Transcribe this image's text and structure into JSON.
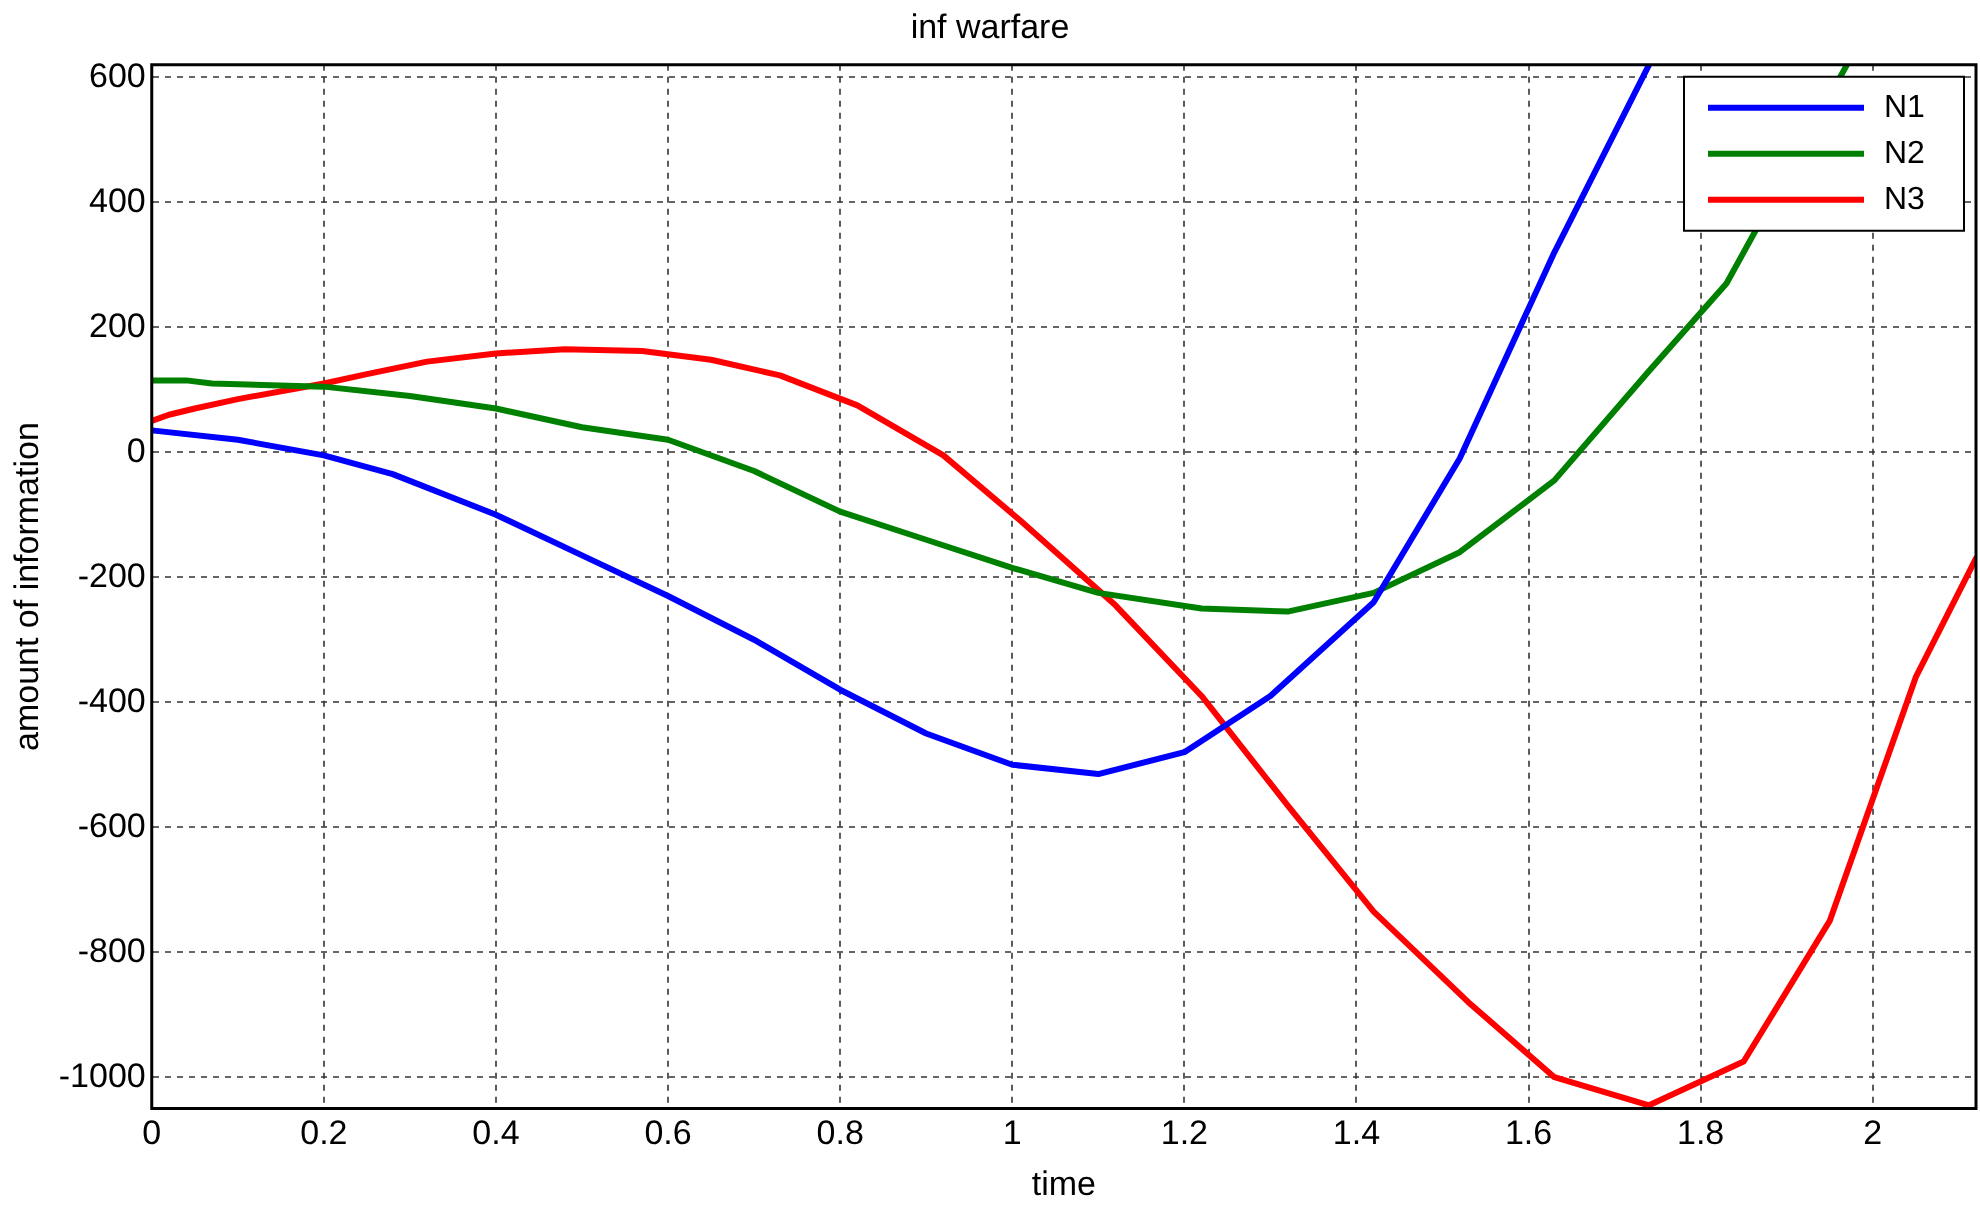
{
  "chart_data": {
    "type": "line",
    "title": "inf warfare",
    "xlabel": "time",
    "ylabel": "amount of information",
    "xlim": [
      0,
      2.12
    ],
    "ylim": [
      -1050,
      620
    ],
    "xticks": [
      0,
      0.2,
      0.4,
      0.6,
      0.8,
      1,
      1.2,
      1.4,
      1.6,
      1.8,
      2
    ],
    "yticks": [
      -1000,
      -800,
      -600,
      -400,
      -200,
      0,
      200,
      400,
      600
    ],
    "grid": true,
    "legend": "top right",
    "line_style": "solid",
    "marker": "none",
    "series": [
      {
        "name": "N1",
        "color": "#0000ff",
        "x": [
          0,
          0.1,
          0.2,
          0.28,
          0.4,
          0.5,
          0.6,
          0.7,
          0.8,
          0.9,
          1.0,
          1.1,
          1.2,
          1.3,
          1.42,
          1.52,
          1.63,
          1.74
        ],
        "values": [
          35,
          20,
          -5,
          -35,
          -100,
          -165,
          -230,
          -300,
          -380,
          -450,
          -500,
          -515,
          -480,
          -390,
          -240,
          -10,
          320,
          620
        ]
      },
      {
        "name": "N2",
        "color": "#008000",
        "x": [
          0,
          0.04,
          0.07,
          0.2,
          0.3,
          0.4,
          0.5,
          0.6,
          0.7,
          0.8,
          0.9,
          1.0,
          1.1,
          1.22,
          1.32,
          1.42,
          1.52,
          1.63,
          1.74,
          1.83,
          1.97
        ],
        "values": [
          115,
          115,
          110,
          105,
          90,
          70,
          40,
          20,
          -30,
          -95,
          -140,
          -185,
          -225,
          -250,
          -255,
          -225,
          -160,
          -45,
          130,
          270,
          620
        ]
      },
      {
        "name": "N3",
        "color": "#ff0000",
        "x": [
          0,
          0.02,
          0.05,
          0.1,
          0.2,
          0.25,
          0.32,
          0.4,
          0.48,
          0.57,
          0.65,
          0.73,
          0.82,
          0.92,
          1.01,
          1.12,
          1.22,
          1.32,
          1.42,
          1.53,
          1.63,
          1.74,
          1.85,
          1.95,
          2.05,
          2.12
        ],
        "values": [
          50,
          60,
          70,
          85,
          110,
          125,
          145,
          158,
          165,
          162,
          148,
          123,
          75,
          -5,
          -110,
          -245,
          -390,
          -565,
          -735,
          -880,
          -1000,
          -1045,
          -975,
          -750,
          -360,
          -170
        ]
      }
    ]
  }
}
